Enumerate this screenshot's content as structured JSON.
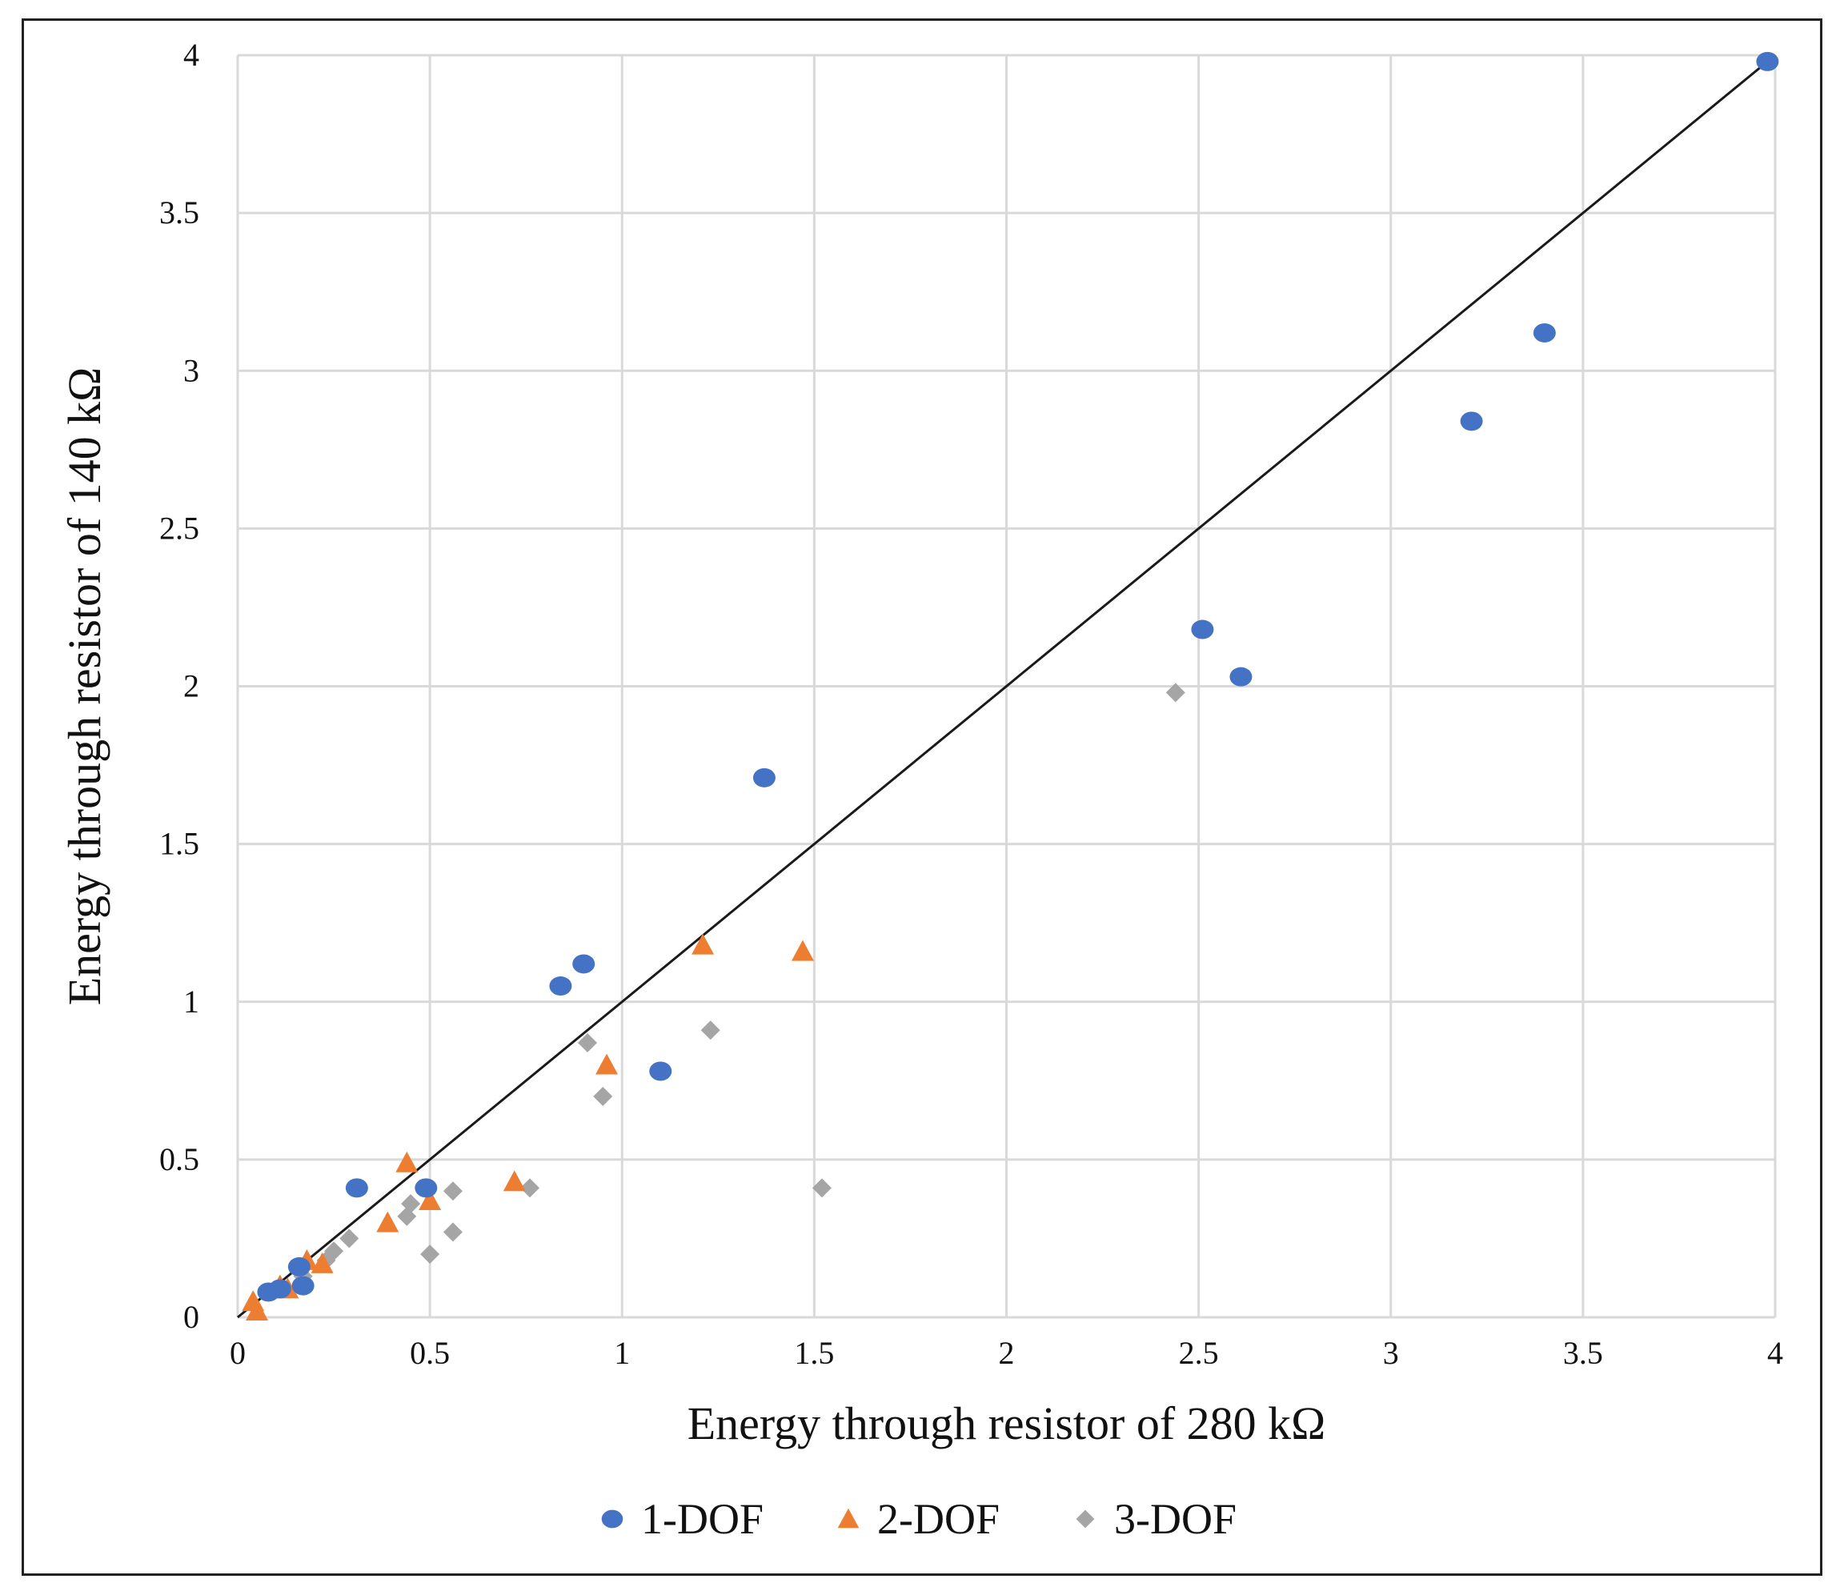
{
  "chart_data": {
    "type": "scatter",
    "title": "",
    "xlabel": "Energy through resistor of 280 kΩ",
    "ylabel": "Energy through resistor of 140 kΩ",
    "xlim": [
      0,
      4
    ],
    "ylim": [
      0,
      4
    ],
    "x_ticks": [
      0,
      0.5,
      1,
      1.5,
      2,
      2.5,
      3,
      3.5,
      4
    ],
    "y_ticks": [
      0,
      0.5,
      1,
      1.5,
      2,
      2.5,
      3,
      3.5,
      4
    ],
    "x_tick_labels": [
      "0",
      "0.5",
      "1",
      "1.5",
      "2",
      "2.5",
      "3",
      "3.5",
      "4"
    ],
    "y_tick_labels": [
      "0",
      "0.5",
      "1",
      "1.5",
      "2",
      "2.5",
      "3",
      "3.5",
      "4"
    ],
    "grid": true,
    "legend_position": "bottom",
    "reference_line": {
      "name": "y = x",
      "from": [
        0,
        0
      ],
      "to": [
        4,
        4
      ],
      "color": "#1a1a1a"
    },
    "series": [
      {
        "name": "1-DOF",
        "marker": "circle",
        "color": "#4472C4",
        "points": [
          [
            3.98,
            3.98
          ],
          [
            3.4,
            3.12
          ],
          [
            3.21,
            2.84
          ],
          [
            2.51,
            2.18
          ],
          [
            2.61,
            2.03
          ],
          [
            1.37,
            1.71
          ],
          [
            0.9,
            1.12
          ],
          [
            0.84,
            1.05
          ],
          [
            1.1,
            0.78
          ],
          [
            0.31,
            0.41
          ],
          [
            0.49,
            0.41
          ],
          [
            0.16,
            0.16
          ],
          [
            0.17,
            0.1
          ],
          [
            0.08,
            0.08
          ],
          [
            0.11,
            0.09
          ]
        ]
      },
      {
        "name": "2-DOF",
        "marker": "triangle",
        "color": "#ED7D31",
        "points": [
          [
            1.21,
            1.18
          ],
          [
            1.47,
            1.16
          ],
          [
            0.96,
            0.8
          ],
          [
            0.44,
            0.49
          ],
          [
            0.72,
            0.43
          ],
          [
            0.5,
            0.37
          ],
          [
            0.39,
            0.3
          ],
          [
            0.18,
            0.18
          ],
          [
            0.22,
            0.17
          ],
          [
            0.13,
            0.09
          ],
          [
            0.11,
            0.1
          ],
          [
            0.04,
            0.05
          ],
          [
            0.05,
            0.02
          ]
        ]
      },
      {
        "name": "3-DOF",
        "marker": "diamond",
        "color": "#A5A5A5",
        "points": [
          [
            2.44,
            1.98
          ],
          [
            1.23,
            0.91
          ],
          [
            0.91,
            0.87
          ],
          [
            0.95,
            0.7
          ],
          [
            1.52,
            0.41
          ],
          [
            0.76,
            0.41
          ],
          [
            0.56,
            0.4
          ],
          [
            0.45,
            0.36
          ],
          [
            0.44,
            0.32
          ],
          [
            0.56,
            0.27
          ],
          [
            0.5,
            0.2
          ],
          [
            0.29,
            0.25
          ],
          [
            0.25,
            0.21
          ],
          [
            0.23,
            0.18
          ],
          [
            0.17,
            0.13
          ]
        ]
      }
    ]
  }
}
